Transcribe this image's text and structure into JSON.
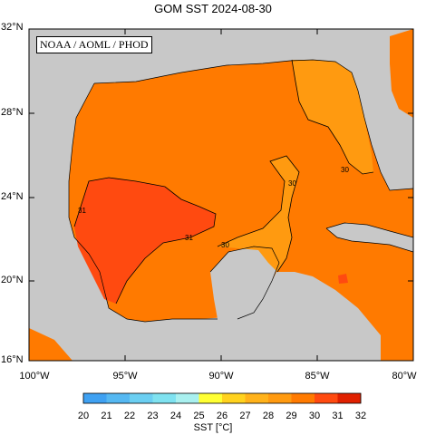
{
  "title": "GOM SST  2024-08-30",
  "credit": "NOAA / AOML / PHOD",
  "lat_labels": [
    "32°N",
    "28°N",
    "24°N",
    "20°N",
    "16°N"
  ],
  "lon_labels": [
    "100°W",
    "95°W",
    "90°W",
    "85°W",
    "80°W"
  ],
  "colorbar": {
    "ticks": [
      "20",
      "21",
      "22",
      "23",
      "24",
      "25",
      "26",
      "27",
      "28",
      "29",
      "30",
      "31",
      "32"
    ],
    "title": "SST [°C]",
    "colors": [
      "#2a8af2",
      "#3fa1f2",
      "#55b8f2",
      "#6bcff2",
      "#7fe2f0",
      "#a9f0ef",
      "#ffff33",
      "#ffd21e",
      "#ffb21a",
      "#ff9a10",
      "#ff7a00",
      "#ff4a10",
      "#e02000"
    ]
  },
  "contours": [
    "30",
    "31",
    "31",
    "30",
    "30"
  ],
  "colors": {
    "land": "#c8c8c8",
    "sea_29_30": "#ff9a10",
    "sea_30_31": "#ff7a00",
    "sea_31_32": "#ff4a10",
    "background": "#ffffff"
  }
}
